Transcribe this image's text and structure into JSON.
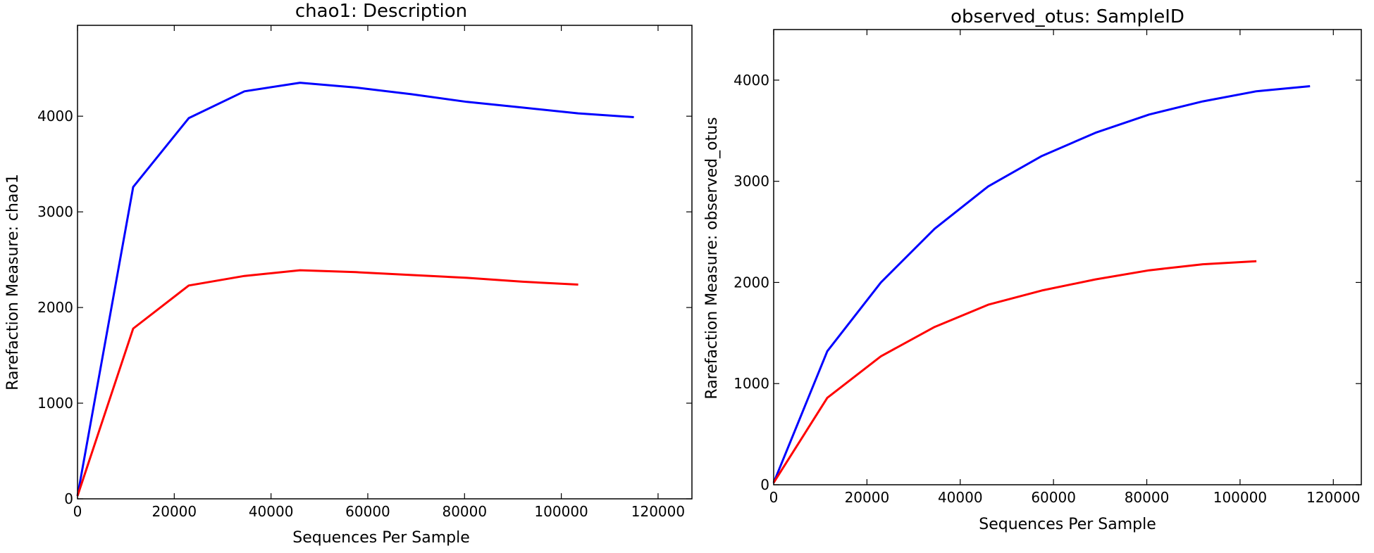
{
  "chart_data": [
    {
      "type": "line",
      "title": "chao1: Description",
      "xlabel": "Sequences Per Sample",
      "ylabel": "Rarefaction Measure: chao1",
      "xlim": [
        0,
        127000
      ],
      "ylim": [
        0,
        4950
      ],
      "xticks": [
        0,
        20000,
        40000,
        60000,
        80000,
        100000,
        120000
      ],
      "yticks": [
        0,
        1000,
        2000,
        3000,
        4000
      ],
      "grid": false,
      "series": [
        {
          "color": "#0000ff",
          "x": [
            0,
            11500,
            23000,
            34500,
            46000,
            57500,
            69000,
            80500,
            92000,
            103500,
            115000
          ],
          "y": [
            30,
            3260,
            3980,
            4260,
            4350,
            4300,
            4230,
            4150,
            4090,
            4030,
            3990
          ]
        },
        {
          "color": "#ff0000",
          "x": [
            0,
            11500,
            23000,
            34500,
            46000,
            57500,
            69000,
            80500,
            92000,
            103500
          ],
          "y": [
            30,
            1780,
            2230,
            2330,
            2390,
            2370,
            2340,
            2310,
            2270,
            2240
          ]
        }
      ]
    },
    {
      "type": "line",
      "title": "observed_otus: SampleID",
      "xlabel": "Sequences Per Sample",
      "ylabel": "Rarefaction Measure: observed_otus",
      "xlim": [
        0,
        126000
      ],
      "ylim": [
        0,
        4500
      ],
      "xticks": [
        0,
        20000,
        40000,
        60000,
        80000,
        100000,
        120000
      ],
      "yticks": [
        0,
        1000,
        2000,
        3000,
        4000
      ],
      "grid": false,
      "series": [
        {
          "color": "#0000ff",
          "x": [
            0,
            11500,
            23000,
            34500,
            46000,
            57500,
            69000,
            80500,
            92000,
            103500,
            115000
          ],
          "y": [
            20,
            1320,
            2000,
            2530,
            2950,
            3250,
            3480,
            3660,
            3790,
            3890,
            3940
          ]
        },
        {
          "color": "#ff0000",
          "x": [
            0,
            11500,
            23000,
            34500,
            46000,
            57500,
            69000,
            80500,
            92000,
            103500
          ],
          "y": [
            20,
            860,
            1270,
            1560,
            1780,
            1920,
            2030,
            2120,
            2180,
            2210
          ]
        }
      ]
    }
  ]
}
